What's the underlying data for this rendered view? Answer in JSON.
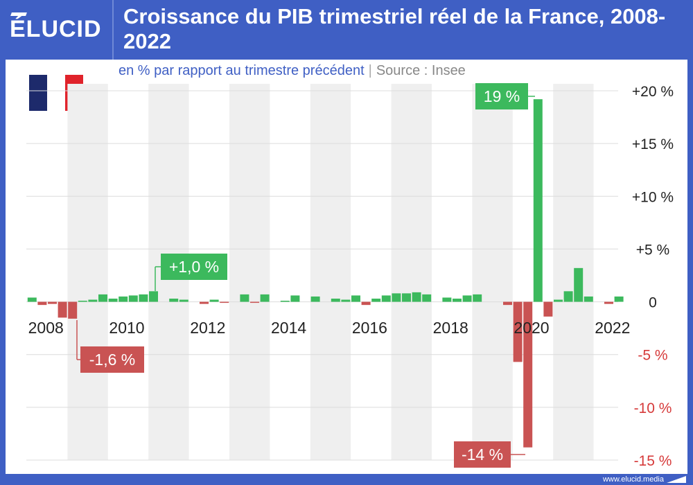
{
  "header": {
    "logo": "ÉLUCID",
    "title": "Croissance du PIB trimestriel réel de la France, 2008-2022"
  },
  "subtitle": {
    "text": "en % par rapport au trimestre précédent",
    "separator": "|",
    "source": "Source : Insee"
  },
  "footer": {
    "url": "www.elucid.media"
  },
  "colors": {
    "brand": "#3f5fc4",
    "positive": "#3cb95d",
    "negative": "#c95353",
    "flag_blue": "#1d2a6b",
    "flag_white": "#ffffff",
    "flag_red": "#e0232b"
  },
  "flag_icon": "france-flag-icon",
  "chart_data": {
    "type": "bar",
    "title": "Croissance du PIB trimestriel réel de la France, 2008-2022",
    "ylabel": "",
    "xlabel": "",
    "ylim": [
      -15,
      20
    ],
    "yticks": [
      20,
      15,
      10,
      5,
      0,
      -5,
      -10,
      -15
    ],
    "ytick_labels": [
      "+20 %",
      "+15 %",
      "+10 %",
      "+5 %",
      "0",
      "-5 %",
      "-10 %",
      "-15 %"
    ],
    "xtick_labels": [
      "2008",
      "2010",
      "2012",
      "2014",
      "2016",
      "2018",
      "2020",
      "2022"
    ],
    "grid": true,
    "categories": [
      "2008 T1",
      "2008 T2",
      "2008 T3",
      "2008 T4",
      "2009 T1",
      "2009 T2",
      "2009 T3",
      "2009 T4",
      "2010 T1",
      "2010 T2",
      "2010 T3",
      "2010 T4",
      "2011 T1",
      "2011 T2",
      "2011 T3",
      "2011 T4",
      "2012 T1",
      "2012 T2",
      "2012 T3",
      "2012 T4",
      "2013 T1",
      "2013 T2",
      "2013 T3",
      "2013 T4",
      "2014 T1",
      "2014 T2",
      "2014 T3",
      "2014 T4",
      "2015 T1",
      "2015 T2",
      "2015 T3",
      "2015 T4",
      "2016 T1",
      "2016 T2",
      "2016 T3",
      "2016 T4",
      "2017 T1",
      "2017 T2",
      "2017 T3",
      "2017 T4",
      "2018 T1",
      "2018 T2",
      "2018 T3",
      "2018 T4",
      "2019 T1",
      "2019 T2",
      "2019 T3",
      "2019 T4",
      "2020 T1",
      "2020 T2",
      "2020 T3",
      "2020 T4",
      "2021 T1",
      "2021 T2",
      "2021 T3",
      "2021 T4",
      "2022 T1",
      "2022 T2",
      "2022 T3",
      "2022 T4"
    ],
    "values": [
      0.4,
      -0.3,
      -0.2,
      -1.5,
      -1.6,
      0.1,
      0.2,
      0.7,
      0.3,
      0.5,
      0.6,
      0.7,
      1.0,
      0.0,
      0.3,
      0.2,
      0.0,
      -0.2,
      0.2,
      -0.1,
      0.0,
      0.7,
      -0.1,
      0.7,
      0.0,
      0.1,
      0.6,
      0.0,
      0.5,
      0.0,
      0.3,
      0.2,
      0.6,
      -0.3,
      0.3,
      0.6,
      0.8,
      0.8,
      0.9,
      0.7,
      0.0,
      0.4,
      0.3,
      0.6,
      0.7,
      0.0,
      0.0,
      -0.3,
      -5.7,
      -13.8,
      19.2,
      -1.4,
      0.2,
      1.0,
      3.2,
      0.5,
      0.0,
      -0.2,
      0.5,
      0.0
    ],
    "annotations": [
      {
        "label": "+1,0 %",
        "category": "2011 T1",
        "value": 1.0
      },
      {
        "label": "-1,6 %",
        "category": "2009 T1",
        "value": -1.6
      },
      {
        "label": "19 %",
        "category": "2020 T3",
        "value": 19.2
      },
      {
        "label": "-14 %",
        "category": "2020 T2",
        "value": -13.8
      }
    ]
  }
}
